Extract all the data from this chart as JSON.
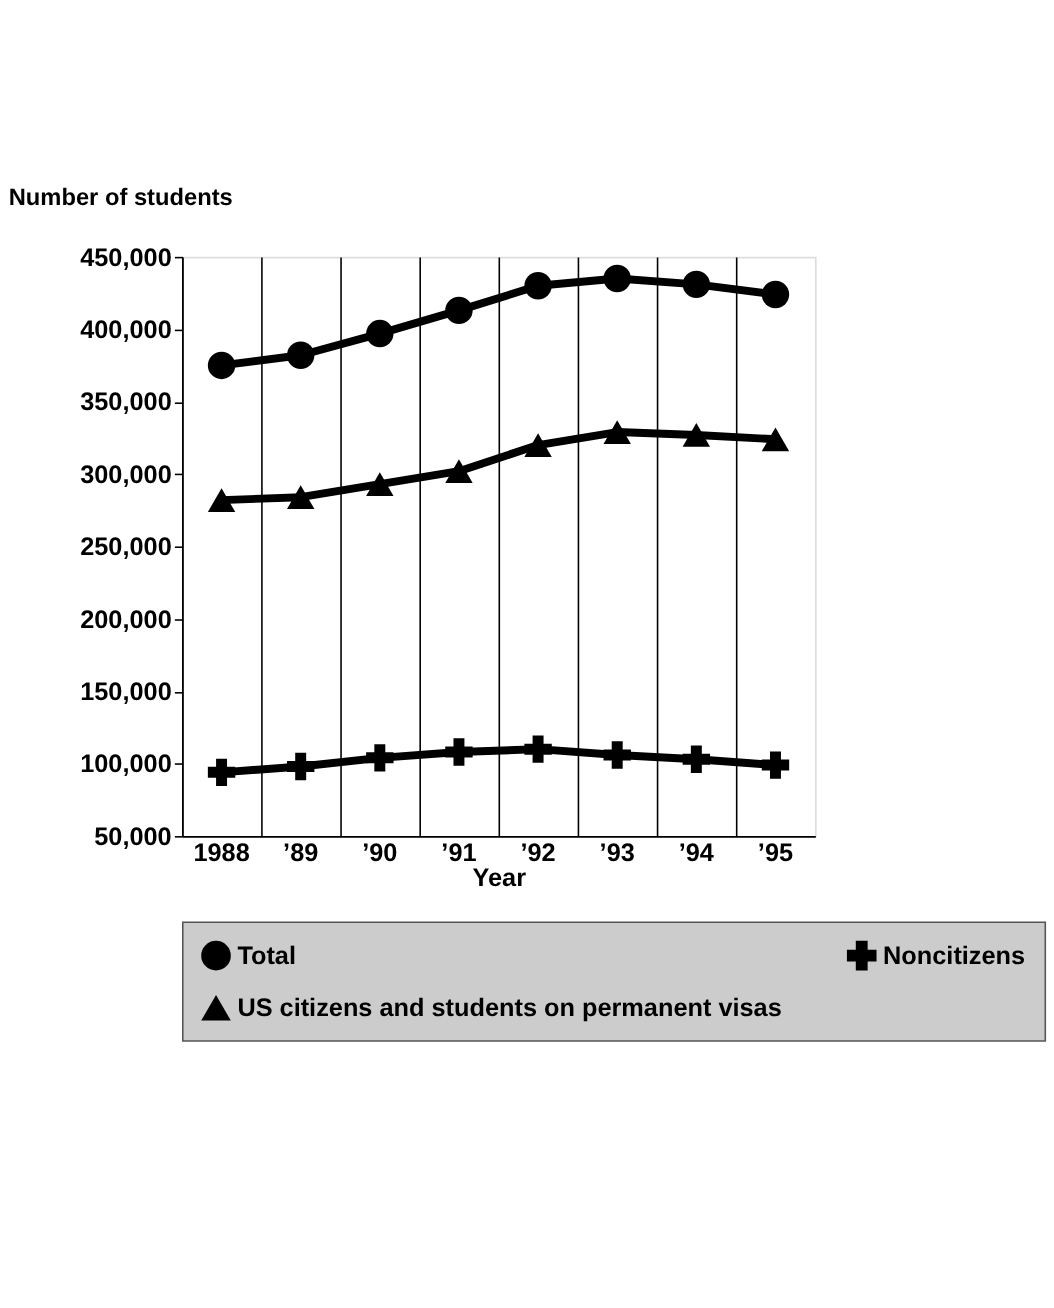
{
  "chart_data": {
    "type": "line",
    "ylabel": "Number of students",
    "xlabel": "Year",
    "categories": [
      "1988",
      "’89",
      "’90",
      "’91",
      "’92",
      "’93",
      "’94",
      "’95"
    ],
    "series": [
      {
        "name": "Total",
        "color": "#000000",
        "marker": "circle",
        "values": [
          375000,
          382000,
          397000,
          413000,
          430000,
          435000,
          431000,
          424000
        ]
      },
      {
        "name": "Noncitizens",
        "color": "#000000",
        "marker": "cross",
        "values": [
          94000,
          98000,
          104000,
          108000,
          110000,
          106000,
          103000,
          99000
        ]
      },
      {
        "name": "US citizens and students on permanent visas",
        "color": "#000000",
        "marker": "triangle",
        "values": [
          282000,
          284000,
          293000,
          302000,
          320000,
          329000,
          327000,
          324000
        ]
      }
    ],
    "ylim": [
      50000,
      450000
    ],
    "yticks": [
      {
        "value": 50000,
        "label": "50,000"
      },
      {
        "value": 100000,
        "label": "100,000"
      },
      {
        "value": 150000,
        "label": "150,000"
      },
      {
        "value": 200000,
        "label": "200,000"
      },
      {
        "value": 250000,
        "label": "250,000"
      },
      {
        "value": 300000,
        "label": "300,000"
      },
      {
        "value": 350000,
        "label": "350,000"
      },
      {
        "value": 400000,
        "label": "400,000"
      },
      {
        "value": 450000,
        "label": "450,000"
      }
    ],
    "grid": "x",
    "legend": "bottom",
    "line_style": "solid"
  }
}
